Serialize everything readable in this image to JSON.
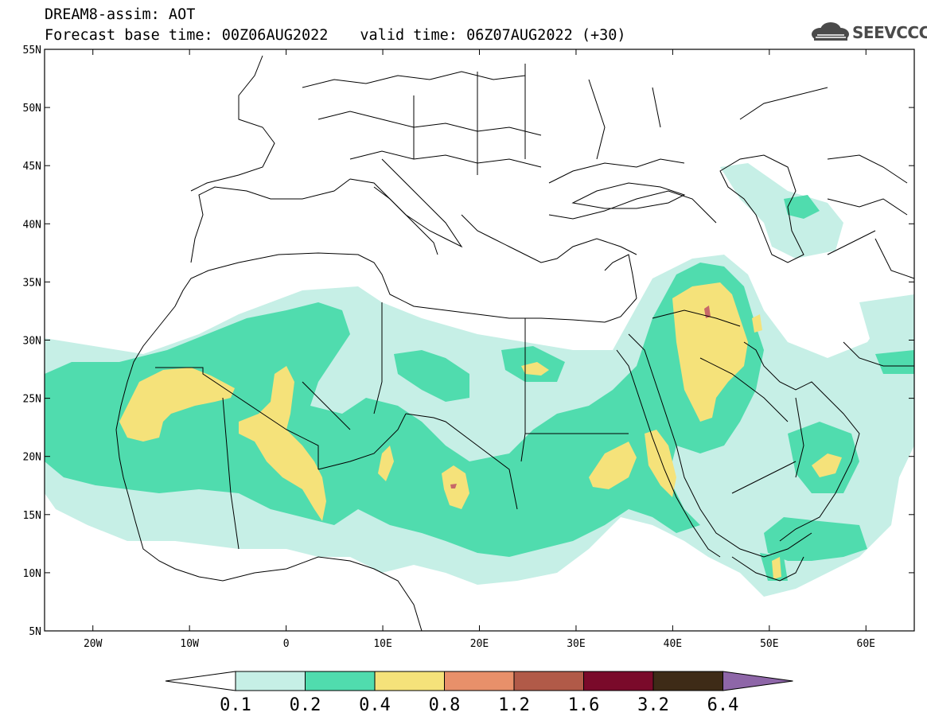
{
  "header": {
    "title": "DREAM8-assim: AOT",
    "base_time": "Forecast base time: 00Z06AUG2022",
    "valid_time": "valid time: 06Z07AUG2022 (+30)"
  },
  "logo": {
    "text": "SEEVCCC",
    "icon": "cloud-logo-icon"
  },
  "map": {
    "lon_range": [
      -25,
      65
    ],
    "lat_range": [
      5,
      55
    ],
    "lat_ticks": [
      "5N",
      "10N",
      "15N",
      "20N",
      "25N",
      "30N",
      "35N",
      "40N",
      "45N",
      "50N",
      "55N"
    ],
    "lon_ticks": [
      "20W",
      "10W",
      "0",
      "10E",
      "20E",
      "30E",
      "40E",
      "50E",
      "60E"
    ]
  },
  "colorbar": {
    "labels": [
      "0.1",
      "0.2",
      "0.4",
      "0.8",
      "1.2",
      "1.6",
      "3.2",
      "6.4"
    ],
    "colors": [
      "#ffffff",
      "#c6efe6",
      "#50dcae",
      "#f5e27a",
      "#e8906a",
      "#b15a48",
      "#7a0a2a",
      "#3e2b17",
      "#8e66a8"
    ]
  },
  "shading_colors": {
    "level_0_1": "#c6efe6",
    "level_0_2": "#50dcae",
    "level_0_4": "#f5e27a",
    "level_0_8": "#e8906a",
    "level_1_2": "#c86868"
  }
}
